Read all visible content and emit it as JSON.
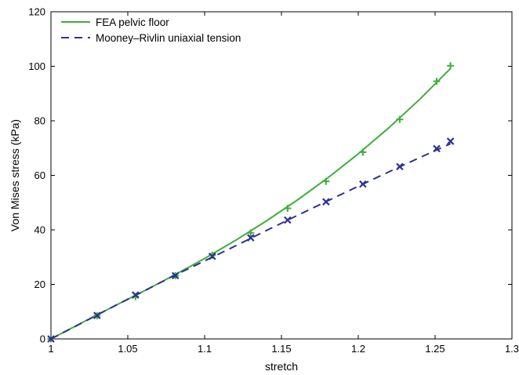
{
  "chart_data": {
    "type": "line",
    "title": "",
    "xlabel": "stretch",
    "ylabel": "Von Mises stress (kPa)",
    "xlim": [
      1,
      1.3
    ],
    "ylim": [
      0,
      120
    ],
    "x_ticks": [
      1,
      1.05,
      1.1,
      1.15,
      1.2,
      1.25,
      1.3
    ],
    "x_tick_labels": [
      "1",
      "1.05",
      "1.1",
      "1.15",
      "1.2",
      "1.25",
      "1.3"
    ],
    "y_ticks": [
      0,
      20,
      40,
      60,
      80,
      100,
      120
    ],
    "y_tick_labels": [
      "0",
      "20",
      "40",
      "60",
      "80",
      "100",
      "120"
    ],
    "grid": false,
    "legend_position": "top-left",
    "series": [
      {
        "name": "FEA pelvic floor",
        "color": "#3fae3b",
        "line_style": "solid",
        "curve": {
          "x": [
            1.0,
            1.02,
            1.04,
            1.06,
            1.08,
            1.1,
            1.12,
            1.14,
            1.16,
            1.18,
            1.2,
            1.22,
            1.24,
            1.26
          ],
          "y": [
            0,
            5.9,
            11.7,
            17.4,
            23.3,
            29.5,
            36.1,
            43.2,
            50.8,
            59.0,
            67.9,
            77.5,
            87.9,
            99.2
          ]
        },
        "markers": {
          "symbol": "plus",
          "x": [
            1.0,
            1.03,
            1.055,
            1.081,
            1.105,
            1.13,
            1.154,
            1.179,
            1.203,
            1.227,
            1.251,
            1.26
          ],
          "y": [
            0,
            8.5,
            15.5,
            23.2,
            30.7,
            38.9,
            47.9,
            57.8,
            68.5,
            80.5,
            94.5,
            100.2
          ]
        }
      },
      {
        "name": "Mooney–Rivlin uniaxial tension",
        "color": "#2e3192",
        "line_style": "dashed",
        "curve": {
          "x": [
            1.0,
            1.02,
            1.04,
            1.06,
            1.08,
            1.1,
            1.12,
            1.14,
            1.16,
            1.18,
            1.2,
            1.22,
            1.24,
            1.26
          ],
          "y": [
            0,
            5.8,
            11.7,
            17.4,
            23.2,
            28.6,
            34.1,
            39.7,
            45.2,
            50.6,
            56.0,
            61.3,
            66.5,
            71.6
          ]
        },
        "markers": {
          "symbol": "x",
          "x": [
            1.0,
            1.03,
            1.055,
            1.081,
            1.105,
            1.13,
            1.154,
            1.179,
            1.203,
            1.227,
            1.251,
            1.26
          ],
          "y": [
            0,
            8.6,
            16.1,
            23.2,
            30.3,
            37.1,
            43.6,
            50.3,
            56.8,
            63.2,
            69.8,
            72.5
          ]
        }
      }
    ]
  }
}
